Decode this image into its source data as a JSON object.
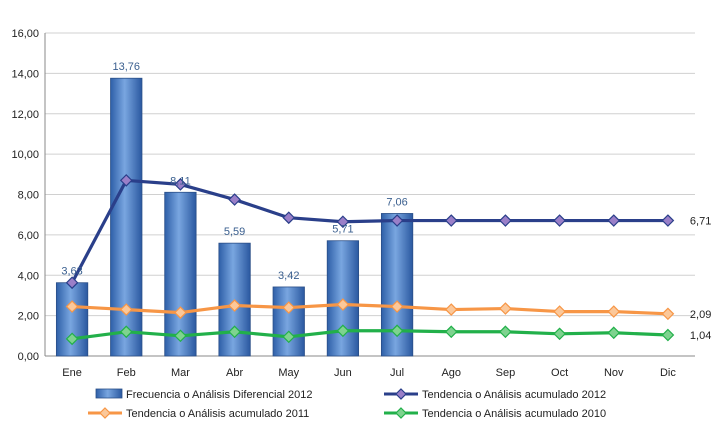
{
  "chart_data": {
    "type": "bar+line",
    "categories": [
      "Ene",
      "Feb",
      "Mar",
      "Abr",
      "May",
      "Jun",
      "Jul",
      "Ago",
      "Sep",
      "Oct",
      "Nov",
      "Dic"
    ],
    "ylim": [
      0,
      16
    ],
    "y_ticks": [
      "0,00",
      "2,00",
      "4,00",
      "6,00",
      "8,00",
      "10,00",
      "12,00",
      "14,00",
      "16,00"
    ],
    "grid": "horizontal",
    "legend_position": "bottom",
    "bars": {
      "name": "Frecuencia o Análisis Diferencial 2012",
      "color": "#3c74c4",
      "values": [
        3.63,
        13.76,
        8.11,
        5.59,
        3.42,
        5.71,
        7.06
      ],
      "labels": [
        "3,63",
        "13,76",
        "8,11",
        "5,59",
        "3,42",
        "5,71",
        "7,06"
      ]
    },
    "series": [
      {
        "name": "Tendencia o Análisis acumulado 2012",
        "color": "#2a3f8a",
        "marker_color": "#9a7fc8",
        "values": [
          3.63,
          8.7,
          8.5,
          7.75,
          6.85,
          6.65,
          6.71,
          6.71,
          6.71,
          6.71,
          6.71,
          6.71
        ],
        "end_label": "6,71"
      },
      {
        "name": "Tendencia o Análisis acumulado 2011",
        "color": "#f79646",
        "marker_color": "#fbc89a",
        "values": [
          2.45,
          2.3,
          2.15,
          2.5,
          2.4,
          2.55,
          2.45,
          2.3,
          2.35,
          2.2,
          2.2,
          2.09
        ],
        "end_label": "2,09"
      },
      {
        "name": "Tendencia o Análisis acumulado 2010",
        "color": "#22b04a",
        "marker_color": "#7ed38f",
        "values": [
          0.85,
          1.2,
          1.0,
          1.2,
          0.95,
          1.25,
          1.25,
          1.2,
          1.2,
          1.1,
          1.15,
          1.04
        ],
        "end_label": "1,04"
      }
    ]
  }
}
